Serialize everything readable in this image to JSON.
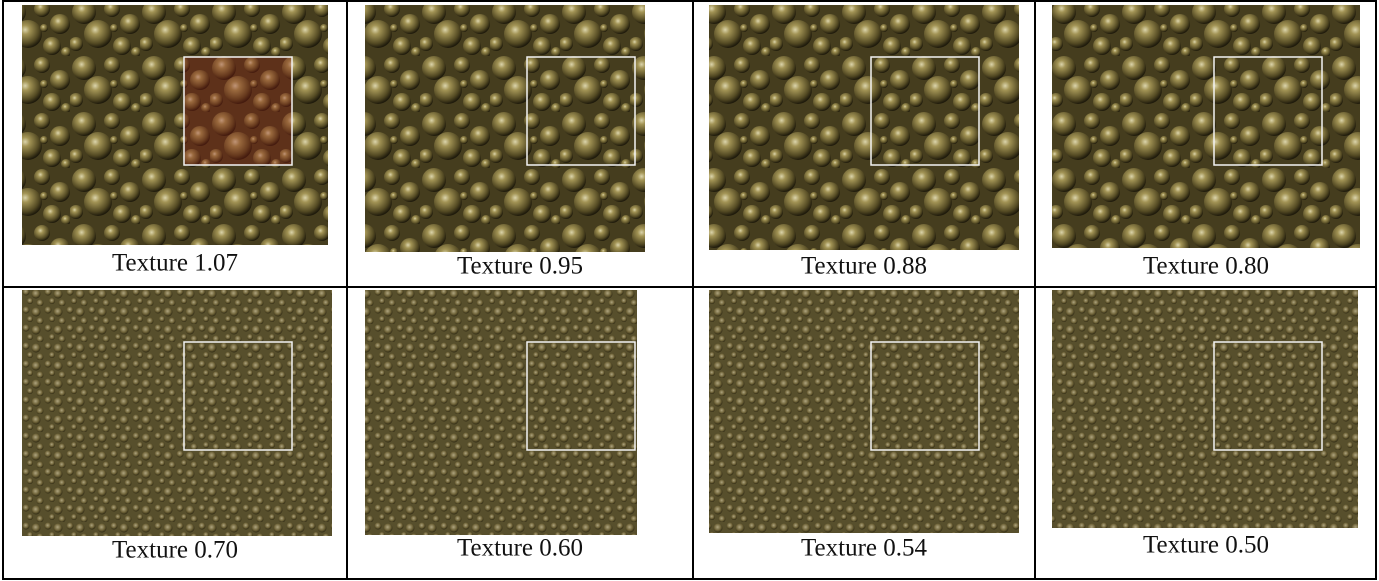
{
  "cells": [
    {
      "caption": "Texture 1.07"
    },
    {
      "caption": "Texture 0.95"
    },
    {
      "caption": "Texture 0.88"
    },
    {
      "caption": "Texture 0.80"
    },
    {
      "caption": "Texture 0.70"
    },
    {
      "caption": "Texture 0.60"
    },
    {
      "caption": "Texture 0.54"
    },
    {
      "caption": "Texture 0.50"
    }
  ]
}
